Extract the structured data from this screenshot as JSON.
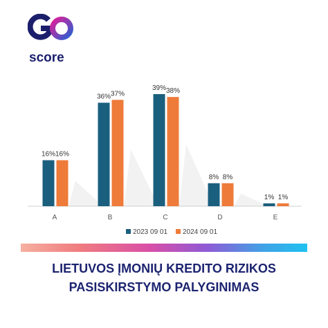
{
  "brand": {
    "logo_top": "GO",
    "logo_bottom": "score",
    "colors": {
      "navy": "#1b1f6b",
      "magenta": "#c2248f",
      "blue": "#2a63c8"
    }
  },
  "footer": {
    "title_line1": "LIETUVOS ĮMONIŲ KREDITO RIZIKOS",
    "title_line2": "PASISKIRSTYMO PALYGINIMAS"
  },
  "chart_data": {
    "type": "bar",
    "categories": [
      "A",
      "B",
      "C",
      "D",
      "E"
    ],
    "series": [
      {
        "name": "2023 09 01",
        "values": [
          16,
          36,
          39,
          8,
          1
        ],
        "labels": [
          "16%",
          "36%",
          "39%",
          "8%",
          "1%"
        ],
        "color": "#1b5f7e"
      },
      {
        "name": "2024 09 01",
        "values": [
          16,
          37,
          38,
          8,
          1
        ],
        "labels": [
          "16%",
          "37%",
          "38%",
          "8%",
          "1%"
        ],
        "color": "#ee7b3a"
      }
    ],
    "ylim": [
      0,
      40
    ],
    "grid": false,
    "legend": "bottom"
  }
}
